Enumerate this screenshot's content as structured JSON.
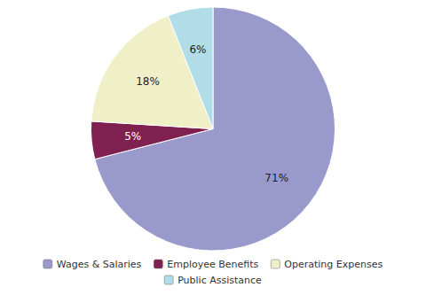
{
  "chart_data": {
    "type": "pie",
    "categories": [
      "Wages & Salaries",
      "Employee Benefits",
      "Operating Expenses",
      "Public Assistance"
    ],
    "values": [
      71,
      5,
      18,
      6
    ],
    "value_labels": [
      "71%",
      "5%",
      "18%",
      "6%"
    ],
    "colors": [
      "#9999cc",
      "#7f2050",
      "#f0f0c8",
      "#b0dde8"
    ],
    "data_labels": true,
    "legend": "bottom"
  }
}
